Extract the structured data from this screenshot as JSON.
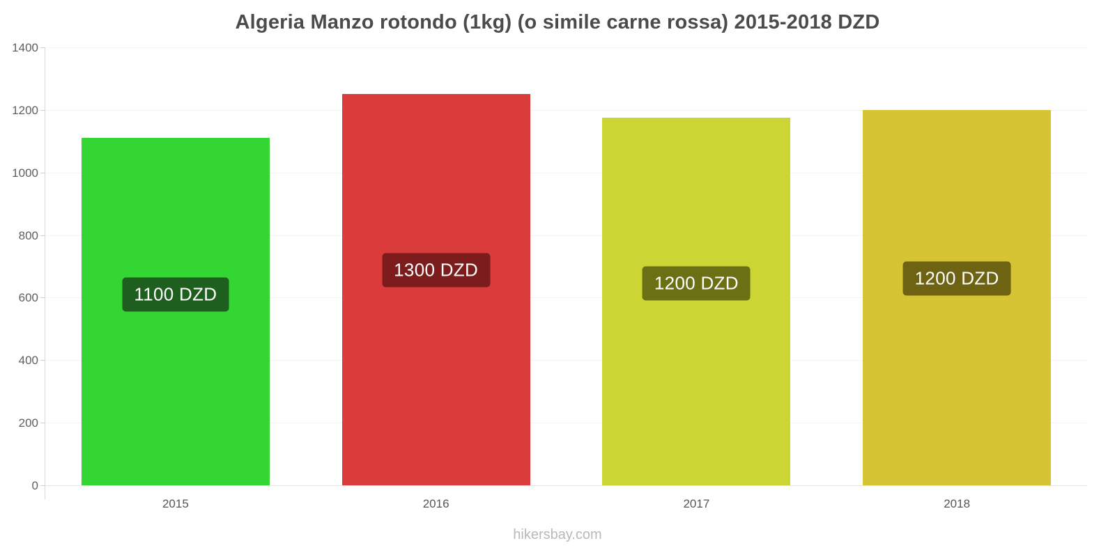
{
  "page": {
    "footer": "hikersbay.com"
  },
  "chart_data": {
    "type": "bar",
    "title": "Algeria Manzo rotondo (1kg) (o simile carne rossa) 2015-2018 DZD",
    "categories": [
      "2015",
      "2016",
      "2017",
      "2018"
    ],
    "values": [
      1110,
      1250,
      1175,
      1200
    ],
    "bar_labels": [
      "1100 DZD",
      "1300 DZD",
      "1200 DZD",
      "1200 DZD"
    ],
    "bar_colors": [
      "#33d633",
      "#da3b3b",
      "#cbd534",
      "#d6c434"
    ],
    "label_colors": [
      "#1e5e1e",
      "#7d1c1c",
      "#6c7014",
      "#6e6313"
    ],
    "currency": "DZD",
    "xlabel": "",
    "ylabel": "",
    "ylim": [
      0,
      1400
    ],
    "yticks": [
      0,
      200,
      400,
      600,
      800,
      1000,
      1200,
      1400
    ],
    "grid": true,
    "legend": false
  }
}
